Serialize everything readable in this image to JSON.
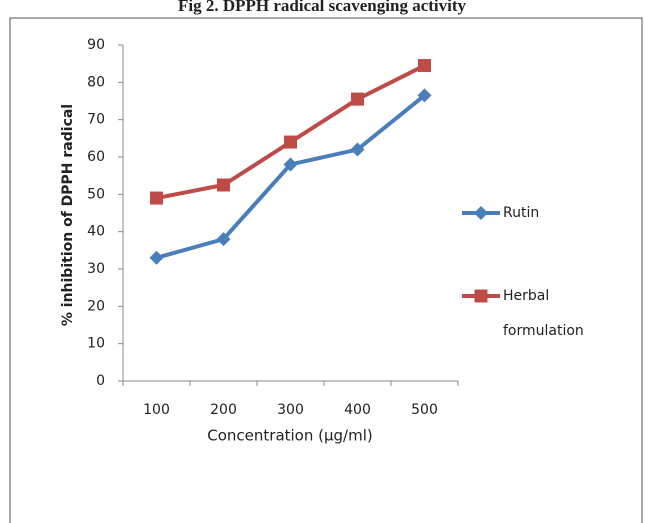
{
  "chart_data": {
    "type": "line",
    "title": "Fig 2. DPPH radical scavenging activity",
    "x_label": "Concentration (µg/ml)",
    "y_label": "% inhibition of DPPH radical",
    "categories": [
      "100",
      "200",
      "300",
      "400",
      "500"
    ],
    "series": [
      {
        "name": "Rutin",
        "color": "#4a7ebb",
        "marker": "diamond",
        "values": [
          33,
          38,
          58,
          62,
          76.5
        ]
      },
      {
        "name": "Herbal formulation",
        "color": "#be4b48",
        "marker": "square",
        "values": [
          49,
          52.5,
          64,
          75.5,
          84.5
        ]
      }
    ],
    "ylim": [
      0,
      90
    ],
    "yticks": [
      0,
      10,
      20,
      30,
      40,
      50,
      60,
      70,
      80,
      90
    ],
    "grid": false,
    "legend": "right"
  }
}
